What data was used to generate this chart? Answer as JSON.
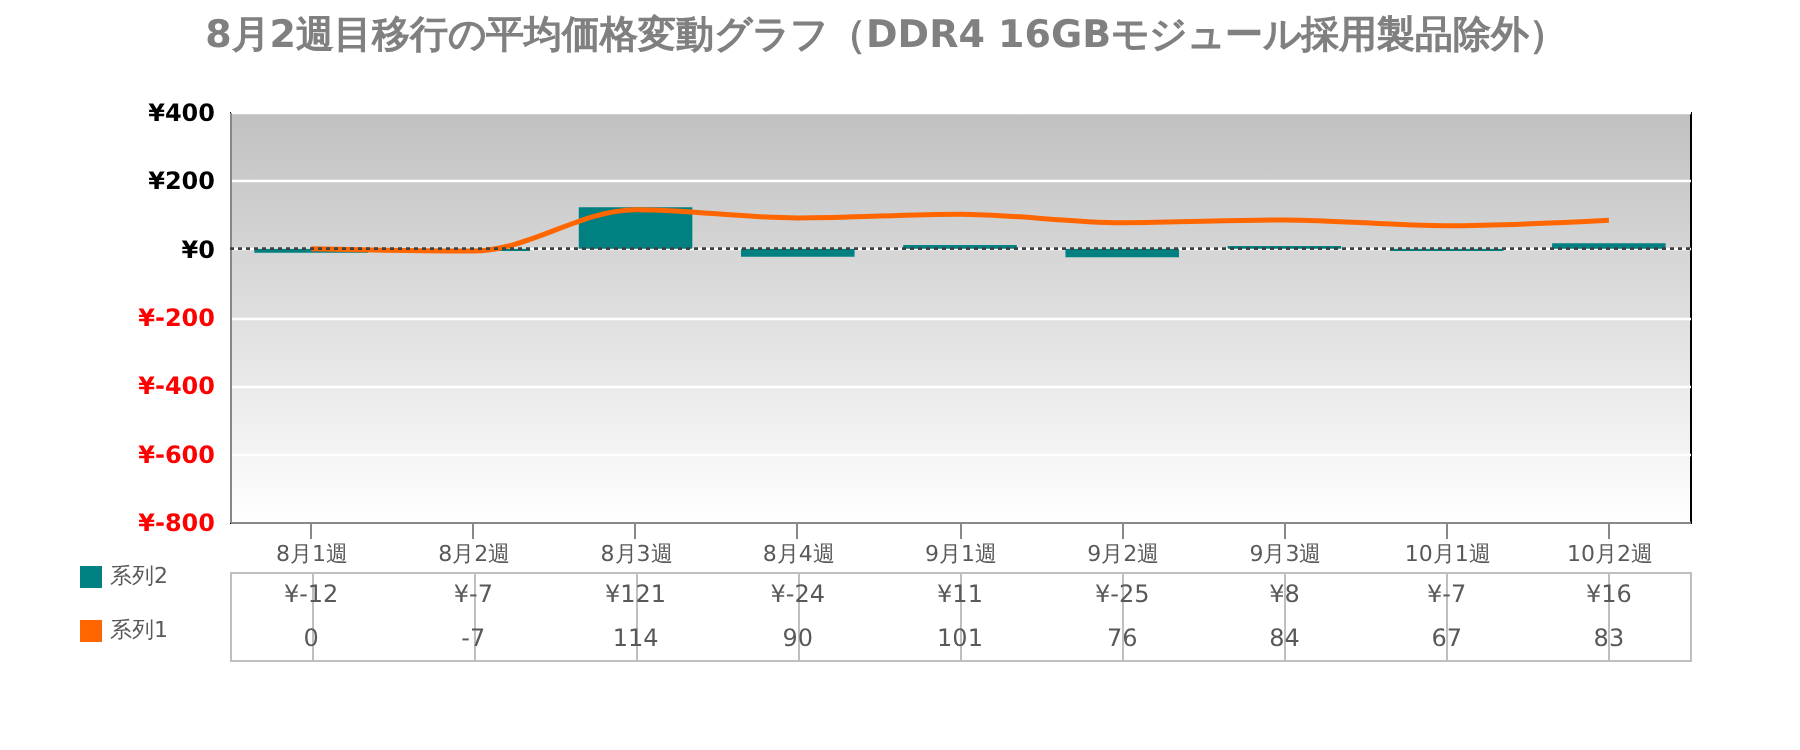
{
  "chart_data": {
    "type": "bar",
    "title": "8月2週目移行の平均価格変動グラフ（DDR4 16GBモジュール採用製品除外）",
    "categories": [
      "8月1週",
      "8月2週",
      "8月3週",
      "8月4週",
      "9月1週",
      "9月2週",
      "9月3週",
      "10月1週",
      "10月2週"
    ],
    "series": [
      {
        "name": "系列2",
        "color": "#008080",
        "values": [
          -12,
          -7,
          121,
          -24,
          11,
          -25,
          8,
          -7,
          16
        ],
        "value_labels": [
          "¥-12",
          "¥-7",
          "¥121",
          "¥-24",
          "¥11",
          "¥-25",
          "¥8",
          "¥-7",
          "¥16"
        ]
      },
      {
        "name": "系列1",
        "type": "line",
        "color": "#ff6600",
        "values": [
          0,
          -7,
          114,
          90,
          101,
          76,
          84,
          67,
          83
        ],
        "value_labels": [
          "0",
          "-7",
          "114",
          "90",
          "101",
          "76",
          "84",
          "67",
          "83"
        ]
      }
    ],
    "ylim": [
      -800,
      400
    ],
    "yticks": [
      {
        "value": -800,
        "label": "¥-800"
      },
      {
        "value": -600,
        "label": "¥-600"
      },
      {
        "value": -400,
        "label": "¥-400"
      },
      {
        "value": -200,
        "label": "¥-200"
      },
      {
        "value": 0,
        "label": "¥0"
      },
      {
        "value": 200,
        "label": "¥200"
      },
      {
        "value": 400,
        "label": "¥400"
      }
    ],
    "grid": "y",
    "legend": "bottom",
    "ref_lines": [
      {
        "axis": "y",
        "value": 0,
        "line_style": "dotted",
        "color": "#404040"
      }
    ]
  }
}
